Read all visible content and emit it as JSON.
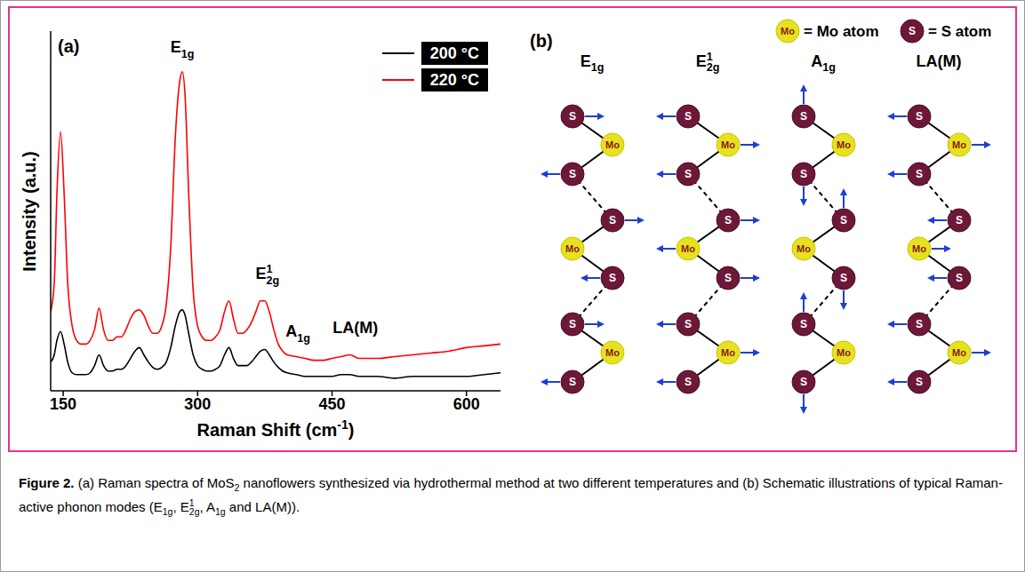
{
  "chart_data": {
    "type": "line",
    "x_label": [
      {
        "text": "Raman Shift (cm"
      },
      {
        "sup": "-1"
      },
      {
        "text": ")"
      }
    ],
    "y_label": "Intensity (a.u.)",
    "x": [
      136,
      140,
      143,
      147,
      151,
      155,
      160,
      165,
      170,
      175,
      180,
      185,
      190,
      195,
      200,
      205,
      210,
      215,
      220,
      225,
      230,
      235,
      240,
      245,
      250,
      255,
      260,
      265,
      270,
      275,
      280,
      283,
      286,
      290,
      295,
      300,
      305,
      310,
      315,
      320,
      325,
      330,
      335,
      340,
      345,
      350,
      355,
      360,
      365,
      370,
      375,
      380,
      385,
      390,
      395,
      400,
      410,
      420,
      430,
      440,
      450,
      460,
      470,
      480,
      490,
      500,
      520,
      540,
      560,
      580,
      600,
      620,
      638
    ],
    "series": [
      {
        "name": "200 °C",
        "color": "#000000",
        "values": [
          8,
          10,
          14,
          16.5,
          13,
          8,
          5,
          4.5,
          4.5,
          4.5,
          5,
          7,
          10,
          7,
          5.5,
          5.5,
          6,
          6,
          7,
          9,
          11,
          12,
          10,
          8,
          6.5,
          6,
          6.5,
          8,
          12,
          18,
          22,
          22.5,
          21,
          16,
          10,
          7,
          6,
          5.5,
          5.5,
          6,
          7,
          10,
          12,
          9,
          7,
          7,
          7,
          8,
          9.5,
          11,
          11.5,
          10,
          8,
          6.5,
          5.5,
          5,
          4.5,
          4,
          4,
          4,
          4,
          4.5,
          4.5,
          4,
          4,
          4,
          3.5,
          4,
          4,
          4,
          4,
          4.5,
          5
        ]
      },
      {
        "name": "220 °C",
        "color": "#ff0000",
        "values": [
          22,
          30,
          55,
          72,
          55,
          30,
          18,
          14,
          13,
          13,
          14,
          17,
          23,
          17,
          14,
          14,
          15,
          15,
          17,
          20,
          22,
          22.5,
          21,
          18,
          16,
          16,
          18,
          24,
          40,
          70,
          86,
          88.7,
          82,
          55,
          28,
          18,
          15,
          14,
          14,
          15,
          17,
          22,
          25,
          20,
          16,
          16,
          17,
          19,
          22,
          25,
          25,
          22,
          17,
          13,
          11,
          10,
          9.5,
          9,
          8.5,
          8.5,
          9,
          9.5,
          10,
          9,
          9,
          9,
          9.5,
          10,
          10.5,
          11,
          12,
          12.5,
          13
        ]
      }
    ],
    "xlim": [
      136,
      638
    ],
    "xticks": [
      150,
      300,
      450,
      600
    ],
    "ylim": [
      0,
      100
    ],
    "tick_labels": "x",
    "legend": "upper right",
    "annotations": [
      {
        "text": [
          {
            "text": "E"
          },
          {
            "sub": "1g"
          }
        ],
        "x": 283,
        "y": 94
      },
      {
        "text": [
          {
            "text": "E"
          },
          {
            "sup": "1"
          },
          {
            "sub": "2g"
          }
        ],
        "x": 378,
        "y": 31
      },
      {
        "text": [
          {
            "text": "A"
          },
          {
            "sub": "1g"
          }
        ],
        "x": 412,
        "y": 15
      },
      {
        "text": [
          {
            "text": "LA(M)"
          }
        ],
        "x": 476,
        "y": 16
      }
    ]
  },
  "panel_a": {
    "letter": "(a)"
  },
  "panel_b": {
    "letter": "(b)",
    "key": [
      {
        "symbol": "Mo",
        "text": "= Mo atom"
      },
      {
        "symbol": "S",
        "text": "= S atom"
      }
    ],
    "modes": [
      {
        "name": [
          {
            "text": "E"
          },
          {
            "sub": "1g"
          }
        ]
      },
      {
        "name": [
          {
            "text": "E"
          },
          {
            "sup": "1"
          },
          {
            "sub": "2g"
          }
        ]
      },
      {
        "name": [
          {
            "text": "A"
          },
          {
            "sub": "1g"
          }
        ]
      },
      {
        "name": [
          {
            "text": "LA(M)"
          }
        ]
      }
    ]
  },
  "caption": {
    "label": "Figure 2.",
    "runs": [
      {
        "text": " (a) Raman spectra of MoS"
      },
      {
        "sub": "2"
      },
      {
        "text": " nanoflowers synthesized via hydrothermal method at two different temperatures and (b) Schematic illustrations of typical Raman-active phonon modes (E"
      },
      {
        "sub": "1g"
      },
      {
        "text": ", E"
      },
      {
        "sup": "1"
      },
      {
        "sub": "2g"
      },
      {
        "text": ", A"
      },
      {
        "sub": "1g"
      },
      {
        "text": " and LA(M))."
      }
    ]
  }
}
